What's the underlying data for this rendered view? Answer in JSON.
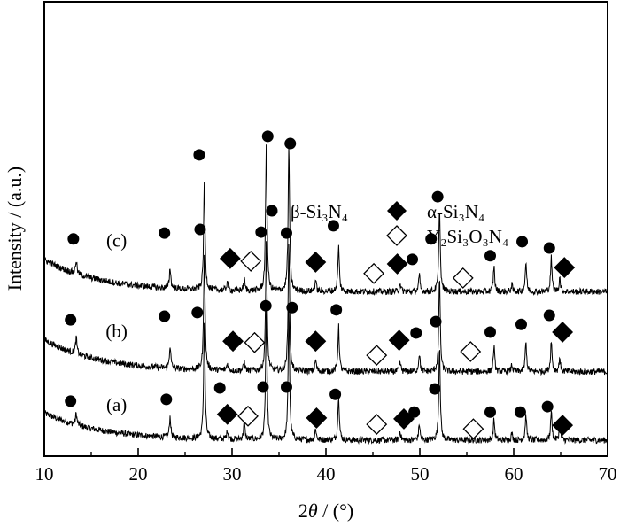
{
  "chart_data": {
    "type": "line",
    "title": "",
    "xlabel_prefix": "2",
    "xlabel_var": "θ",
    "xlabel_suffix": " / (°)",
    "ylabel": "Intensity / (a.u.)",
    "xlim": [
      10,
      70
    ],
    "ylim": [
      0,
      100
    ],
    "xticks": [
      10,
      20,
      30,
      40,
      50,
      60,
      70
    ],
    "xminor": [
      15,
      25,
      35,
      45,
      55,
      65
    ],
    "grid": false,
    "legend": {
      "placement": "top-right",
      "entries": [
        {
          "symbol": "filled-circle",
          "label": "β-Si₃N₄"
        },
        {
          "symbol": "filled-diamond",
          "label": "α-Si₃N₄"
        },
        {
          "symbol": "open-diamond",
          "label": "Y₂Si₃O₃N₄"
        }
      ]
    },
    "peaks_2theta": [
      13.4,
      23.4,
      27.05,
      29.5,
      31.3,
      33.65,
      36.05,
      38.9,
      41.35,
      47.9,
      49.95,
      52.1,
      57.9,
      59.8,
      61.3,
      64.0,
      64.9
    ],
    "series": [
      {
        "name": "(a)",
        "baseline": 3.5,
        "background": 6,
        "label_pos": [
          17.7,
          11.3
        ],
        "peak_heights": [
          2.5,
          4.5,
          26,
          2,
          4,
          29,
          29,
          2.5,
          10,
          2,
          3.5,
          21,
          4.5,
          1.5,
          5.5,
          6.5,
          3
        ]
      },
      {
        "name": "(b)",
        "baseline": 18.6,
        "background": 7,
        "label_pos": [
          17.7,
          27.5
        ],
        "peak_heights": [
          3.5,
          5,
          26,
          1.5,
          2,
          29,
          29,
          2.5,
          10,
          2,
          4,
          21,
          5.5,
          1.5,
          6.5,
          7,
          3
        ]
      },
      {
        "name": "(c)",
        "baseline": 36.2,
        "background": 7,
        "label_pos": [
          17.7,
          47.5
        ],
        "peak_heights": [
          3,
          4.5,
          24,
          2,
          2.5,
          33,
          32,
          2.5,
          10,
          2,
          3.5,
          18.5,
          5.5,
          1.5,
          6.5,
          7.5,
          3
        ]
      }
    ],
    "markers": [
      {
        "phase": "beta",
        "points": [
          [
            13.1,
            47.8
          ],
          [
            22.8,
            49.1
          ],
          [
            26.6,
            49.9
          ],
          [
            26.5,
            66.3
          ],
          [
            33.1,
            49.3
          ],
          [
            33.8,
            70.4
          ],
          [
            35.8,
            49.1
          ],
          [
            36.2,
            68.8
          ],
          [
            40.8,
            50.7
          ],
          [
            51.2,
            47.8
          ],
          [
            51.9,
            57.1
          ],
          [
            49.2,
            43.3
          ],
          [
            57.5,
            44.1
          ],
          [
            60.9,
            47.2
          ],
          [
            63.8,
            45.8
          ],
          [
            12.8,
            30.0
          ],
          [
            22.8,
            30.8
          ],
          [
            26.3,
            31.6
          ],
          [
            33.6,
            33.1
          ],
          [
            36.4,
            32.7
          ],
          [
            41.1,
            32.2
          ],
          [
            49.6,
            27.1
          ],
          [
            51.7,
            29.6
          ],
          [
            57.5,
            27.3
          ],
          [
            60.8,
            29.0
          ],
          [
            63.8,
            31.0
          ],
          [
            12.8,
            12.1
          ],
          [
            23.0,
            12.5
          ],
          [
            28.7,
            15.0
          ],
          [
            33.3,
            15.2
          ],
          [
            35.8,
            15.2
          ],
          [
            41.0,
            13.6
          ],
          [
            49.4,
            9.7
          ],
          [
            51.6,
            14.8
          ],
          [
            57.5,
            9.7
          ],
          [
            60.7,
            9.7
          ],
          [
            63.6,
            10.9
          ]
        ]
      },
      {
        "phase": "alpha",
        "points": [
          [
            29.8,
            43.5
          ],
          [
            38.9,
            42.7
          ],
          [
            47.6,
            42.3
          ],
          [
            65.4,
            41.5
          ],
          [
            30.1,
            25.3
          ],
          [
            38.9,
            25.3
          ],
          [
            47.8,
            25.5
          ],
          [
            65.2,
            27.3
          ],
          [
            29.5,
            9.2
          ],
          [
            39.0,
            8.4
          ],
          [
            48.3,
            8.2
          ],
          [
            65.2,
            6.8
          ]
        ]
      },
      {
        "phase": "Y2Si3O3N4",
        "points": [
          [
            32.0,
            42.9
          ],
          [
            45.1,
            40.2
          ],
          [
            54.6,
            39.2
          ],
          [
            32.4,
            25.0
          ],
          [
            45.4,
            22.2
          ],
          [
            55.4,
            23.0
          ],
          [
            31.7,
            8.8
          ],
          [
            45.4,
            7.0
          ],
          [
            55.7,
            6.0
          ]
        ]
      }
    ]
  }
}
